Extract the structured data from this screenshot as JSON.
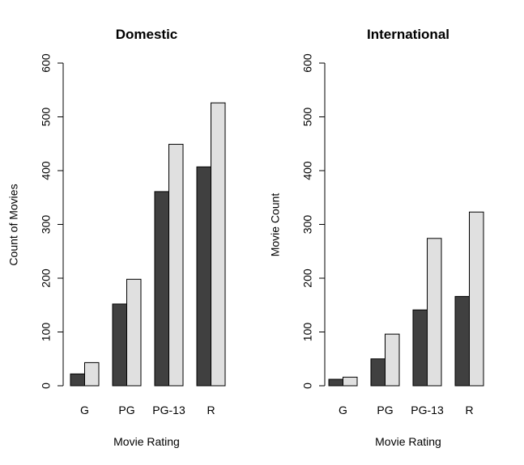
{
  "chart_data": [
    {
      "type": "bar",
      "title": "Domestic",
      "xlabel": "Movie Rating",
      "ylabel": "Count of Movies",
      "categories": [
        "G",
        "PG",
        "PG-13",
        "R"
      ],
      "ylim": [
        0,
        600
      ],
      "yticks": [
        0,
        100,
        200,
        300,
        400,
        500,
        600
      ],
      "series": [
        {
          "values": [
            22,
            152,
            361,
            407
          ],
          "color": "#404040"
        },
        {
          "values": [
            43,
            198,
            449,
            526
          ],
          "color": "#e0e0e0"
        }
      ],
      "legend": "none",
      "grid": false
    },
    {
      "type": "bar",
      "title": "International",
      "xlabel": "Movie Rating",
      "ylabel": "Movie Count",
      "categories": [
        "G",
        "PG",
        "PG-13",
        "R"
      ],
      "ylim": [
        0,
        600
      ],
      "yticks": [
        0,
        100,
        200,
        300,
        400,
        500,
        600
      ],
      "series": [
        {
          "values": [
            12,
            50,
            141,
            166
          ],
          "color": "#404040"
        },
        {
          "values": [
            16,
            96,
            274,
            323
          ],
          "color": "#e0e0e0"
        }
      ],
      "legend": "none",
      "grid": false
    }
  ]
}
